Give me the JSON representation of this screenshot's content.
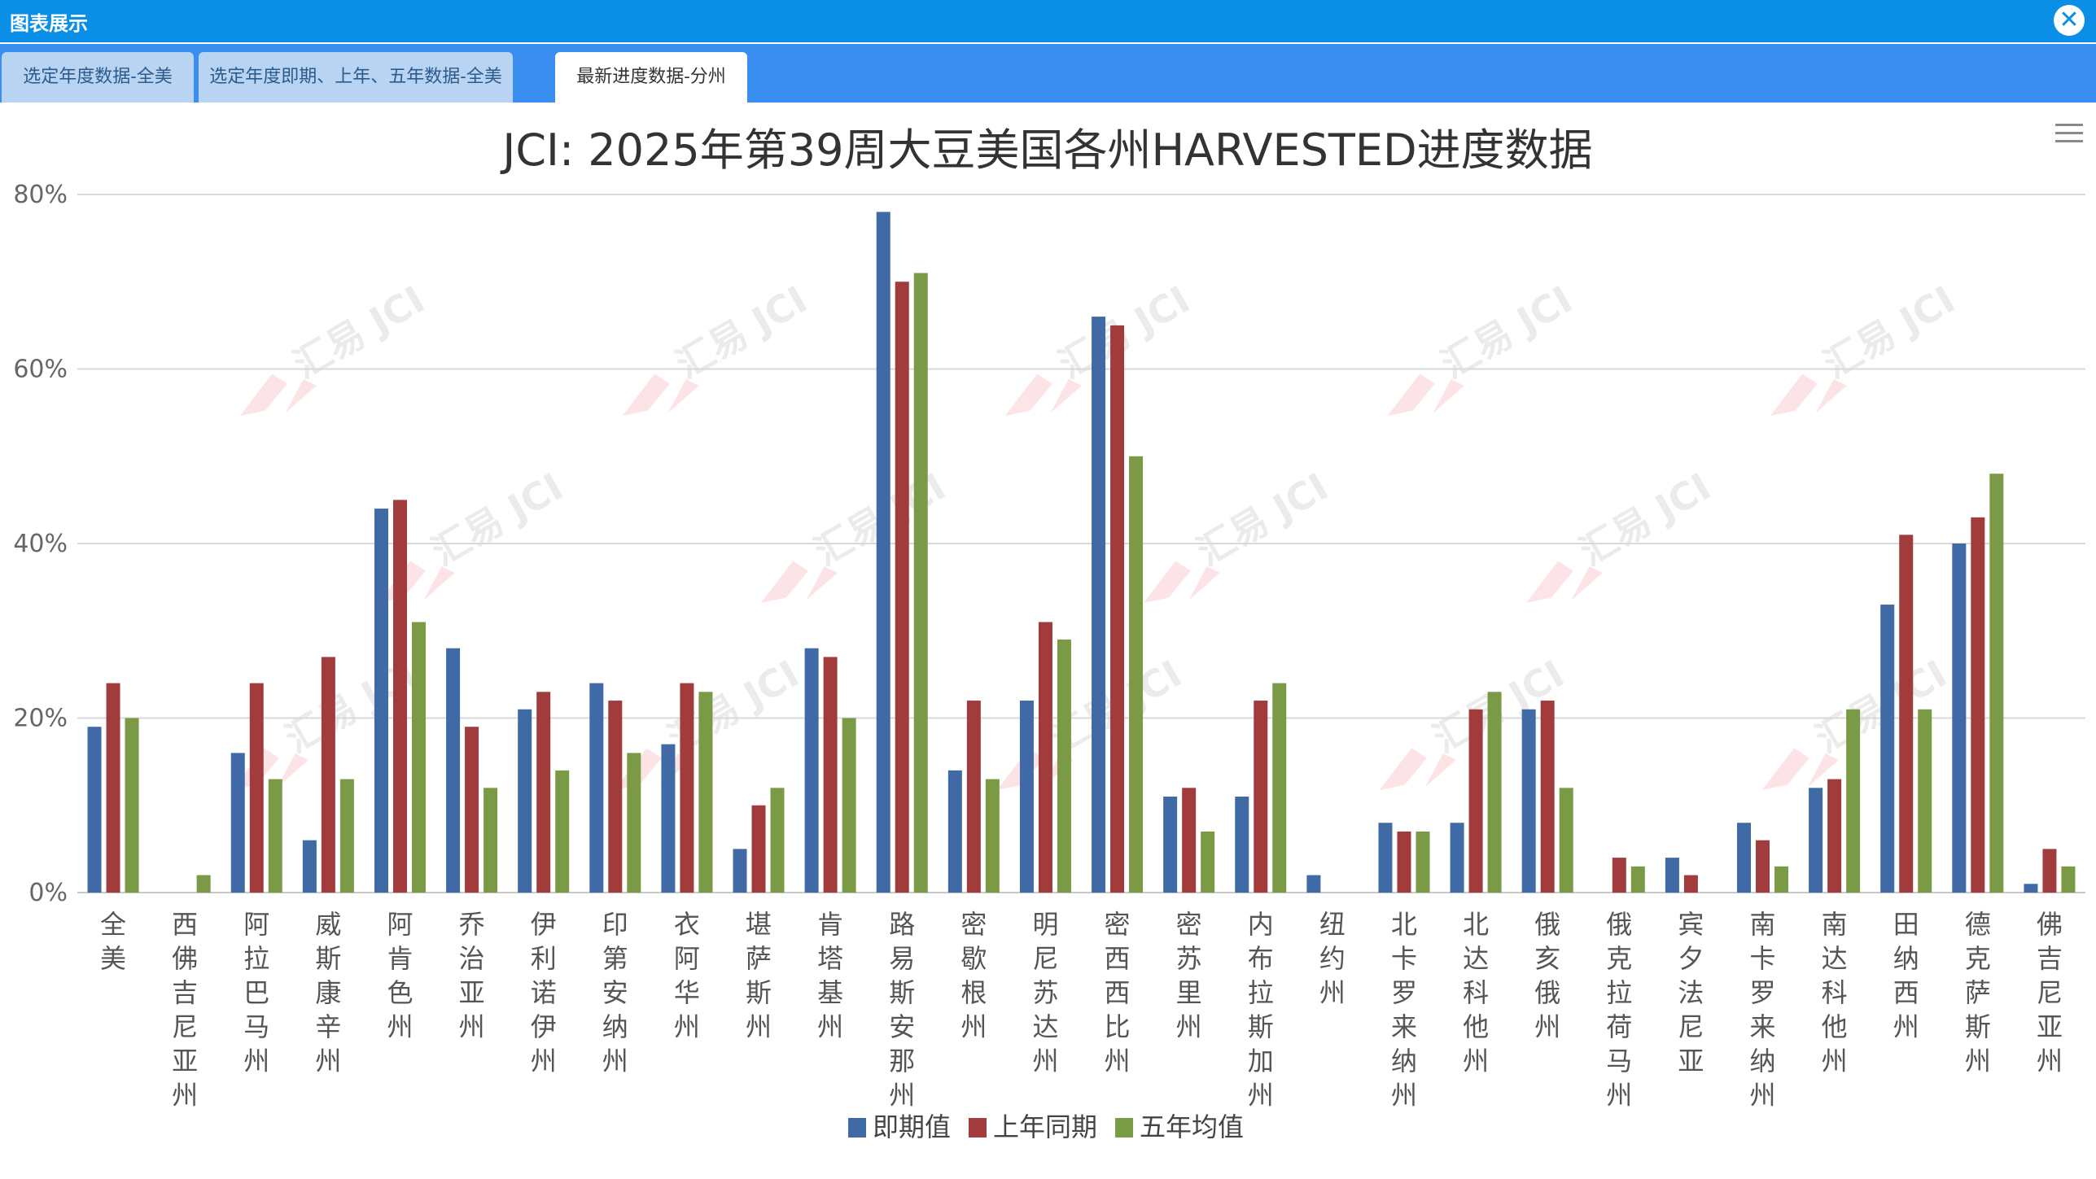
{
  "window": {
    "title": "图表展示"
  },
  "tabs": [
    {
      "label": "选定年度数据-全美"
    },
    {
      "label": "选定年度即期、上年、五年数据-全美"
    },
    {
      "label": "最新进度数据-分州"
    }
  ],
  "colors": {
    "titlebar": "#0a8ee6",
    "tabbar": "#3a8ef0",
    "series": [
      "#3f6aa5",
      "#a23c3c",
      "#7a9a45"
    ]
  },
  "icons": {
    "close": "close-icon",
    "menu": "menu-icon",
    "watermark": "jci-watermark-logo"
  },
  "watermark_text": "汇易 JCI",
  "chart_data": {
    "type": "bar",
    "title": "JCI: 2025年第39周大豆美国各州HARVESTED进度数据",
    "xlabel": "",
    "ylabel": "",
    "ylim": [
      0,
      80
    ],
    "yticks": [
      "0%",
      "20%",
      "40%",
      "60%",
      "80%"
    ],
    "grid": true,
    "legend": "bottom-center",
    "categories": [
      "全美",
      "西佛吉尼亚州",
      "阿拉巴马州",
      "威斯康辛州",
      "阿肯色州",
      "乔治亚州",
      "伊利诺伊州",
      "印第安纳州",
      "衣阿华州",
      "堪萨斯州",
      "肯塔基州",
      "路易斯安那州",
      "密歇根州",
      "明尼苏达州",
      "密西西比州",
      "密苏里州",
      "内布拉斯加州",
      "纽约州",
      "北卡罗来纳州",
      "北达科他州",
      "俄亥俄州",
      "俄克拉荷马州",
      "宾夕法尼亚",
      "南卡罗来纳州",
      "南达科他州",
      "田纳西州",
      "德克萨斯州",
      "佛吉尼亚州"
    ],
    "series": [
      {
        "name": "即期值",
        "values": [
          19,
          0,
          16,
          6,
          44,
          28,
          21,
          24,
          17,
          5,
          28,
          78,
          14,
          22,
          66,
          11,
          11,
          2,
          8,
          8,
          21,
          0,
          4,
          8,
          12,
          33,
          40,
          1
        ]
      },
      {
        "name": "上年同期",
        "values": [
          24,
          0,
          24,
          27,
          45,
          19,
          23,
          22,
          24,
          10,
          27,
          70,
          22,
          31,
          65,
          12,
          22,
          0,
          7,
          21,
          22,
          4,
          2,
          6,
          13,
          41,
          43,
          5
        ]
      },
      {
        "name": "五年均值",
        "values": [
          20,
          2,
          13,
          13,
          31,
          12,
          14,
          16,
          23,
          12,
          20,
          71,
          13,
          29,
          50,
          7,
          24,
          0,
          7,
          23,
          12,
          3,
          0,
          3,
          21,
          21,
          48,
          3
        ]
      }
    ]
  }
}
